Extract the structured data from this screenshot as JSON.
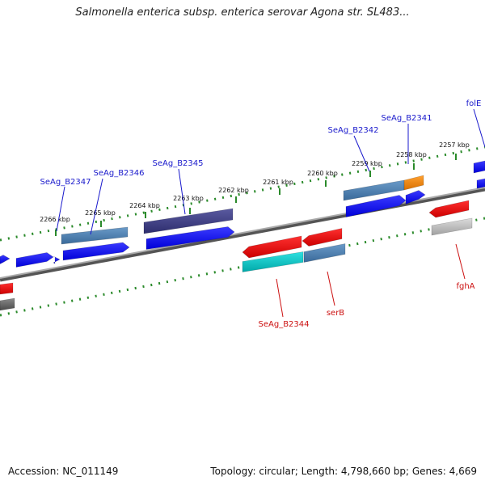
{
  "title": "Salmonella enterica subsp. enterica serovar Agona str. SL483...",
  "footer": {
    "accession": "Accession: NC_011149",
    "topology": "Topology: circular; Length: 4,798,660 bp; Genes: 4,669"
  },
  "colors": {
    "forward_label": "#1a1acc",
    "reverse_label": "#cc1111",
    "tick": "#2a8a2a",
    "backbone": "#777777"
  },
  "ticks": [
    {
      "label": "2266 kbp"
    },
    {
      "label": "2265 kbp"
    },
    {
      "label": "2264 kbp"
    },
    {
      "label": "2263 kbp"
    },
    {
      "label": "2262 kbp"
    },
    {
      "label": "2261 kbp"
    },
    {
      "label": "2260 kbp"
    },
    {
      "label": "2259 kbp"
    },
    {
      "label": "2258 kbp"
    },
    {
      "label": "2257 kbp"
    }
  ],
  "gene_labels": {
    "forward": [
      "SeAg_B2347",
      "SeAg_B2346",
      "SeAg_B2345",
      "SeAg_B2342",
      "SeAg_B2341",
      "folE"
    ],
    "reverse": [
      "SeAg_B2344",
      "serB",
      "fghA"
    ]
  }
}
